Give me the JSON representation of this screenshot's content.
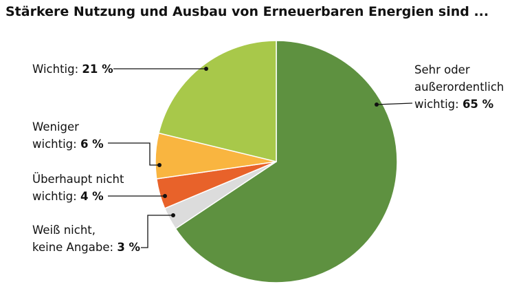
{
  "chart_data": {
    "type": "pie",
    "title": "Stärkere Nutzung und Ausbau von Erneuerbaren Energien sind ...",
    "categories": [
      "Sehr oder\naußerordentlich\nwichtig:",
      "Weiß nicht,\nkeine Angabe:",
      "Überhaupt nicht\nwichtig:",
      "Weniger\nwichtig:",
      "Wichtig:"
    ],
    "values": [
      65,
      3,
      4,
      6,
      21
    ],
    "value_labels": [
      "65 %",
      "3 %",
      "4 %",
      "6 %",
      "21 %"
    ],
    "colors": [
      "#5e9140",
      "#dcdcdc",
      "#e8622a",
      "#f9b540",
      "#a8c84a"
    ]
  }
}
